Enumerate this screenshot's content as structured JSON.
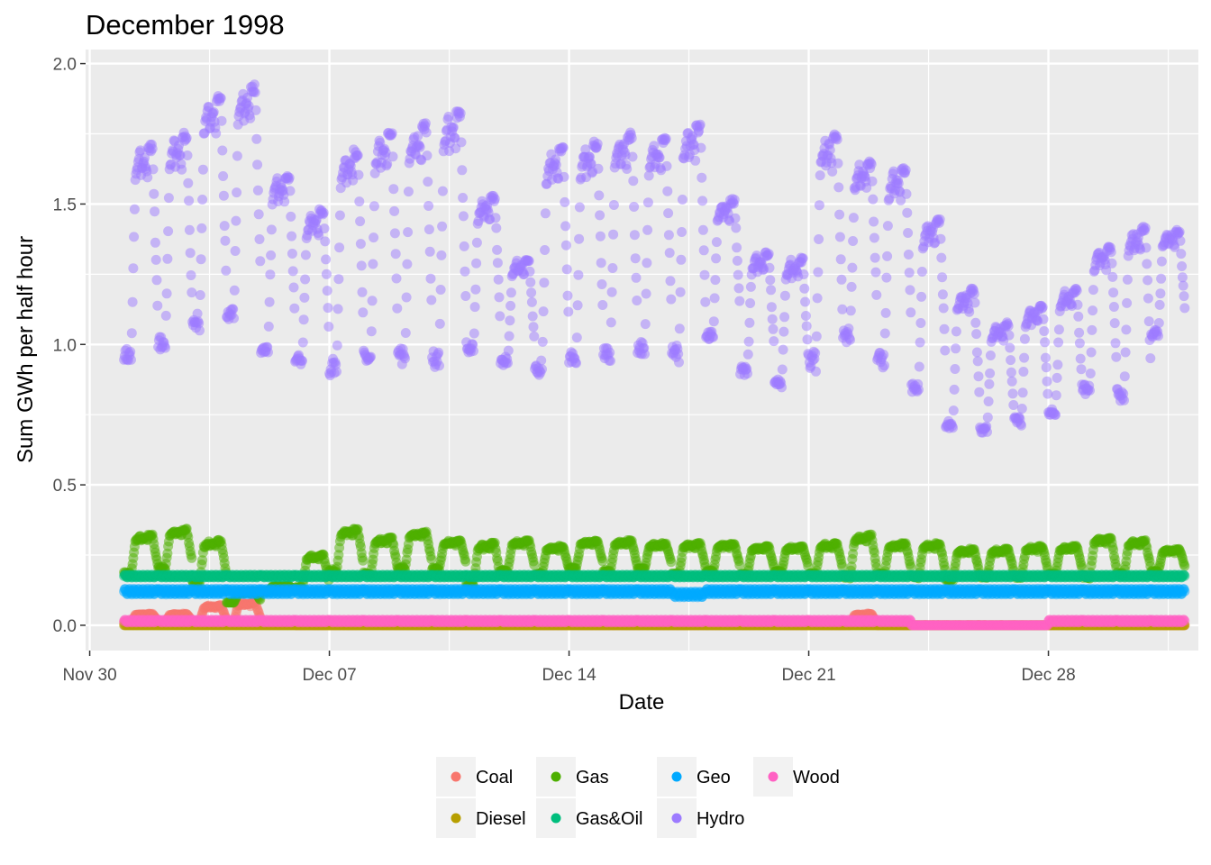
{
  "chart_data": {
    "type": "scatter",
    "title": "December 1998",
    "xlabel": "Date",
    "ylabel": "Sum GWh per half hour",
    "x_unit": "date",
    "x_ticks": [
      {
        "label": "Nov 30",
        "value": "1998-11-30"
      },
      {
        "label": "Dec 07",
        "value": "1998-12-07"
      },
      {
        "label": "Dec 14",
        "value": "1998-12-14"
      },
      {
        "label": "Dec 21",
        "value": "1998-12-21"
      },
      {
        "label": "Dec 28",
        "value": "1998-12-28"
      }
    ],
    "xlim": [
      "1998-11-30",
      "1999-01-01"
    ],
    "y_ticks": [
      0.0,
      0.5,
      1.0,
      1.5,
      2.0
    ],
    "y_tick_labels": [
      "0.0",
      "0.5",
      "1.0",
      "1.5",
      "2.0"
    ],
    "ylim": [
      -0.09,
      2.05
    ],
    "grid": true,
    "legend_position": "bottom",
    "series": [
      {
        "name": "Coal",
        "color": "#F8766D",
        "daily": {
          "days": [
            1,
            2,
            3,
            4,
            5,
            6,
            7,
            8,
            9,
            10,
            11,
            12,
            13,
            14,
            15,
            16,
            17,
            18,
            19,
            20,
            21,
            22,
            23,
            24,
            25,
            26,
            27,
            28,
            29,
            30,
            31
          ],
          "base": [
            0.01,
            0.01,
            0.01,
            0.01,
            0.01,
            0.0,
            0.0,
            0.0,
            0.0,
            0.0,
            0.0,
            0.0,
            0.0,
            0.0,
            0.0,
            0.0,
            0.0,
            0.0,
            0.0,
            0.0,
            0.0,
            0.0,
            0.0,
            0.0,
            0.0,
            0.0,
            0.0,
            0.0,
            0.0,
            0.0,
            0.0
          ],
          "peak": [
            0.04,
            0.04,
            0.07,
            0.08,
            0.01,
            0.0,
            0.0,
            0.0,
            0.0,
            0.0,
            0.0,
            0.0,
            0.0,
            0.0,
            0.0,
            0.0,
            0.0,
            0.0,
            0.0,
            0.0,
            0.0,
            0.04,
            0.0,
            0.0,
            0.0,
            0.0,
            0.0,
            0.0,
            0.0,
            0.0,
            0.0
          ]
        }
      },
      {
        "name": "Diesel",
        "color": "#B79F00",
        "daily": {
          "days": [
            1,
            2,
            3,
            4,
            5,
            6,
            7,
            8,
            9,
            10,
            11,
            12,
            13,
            14,
            15,
            16,
            17,
            18,
            19,
            20,
            21,
            22,
            23,
            24,
            25,
            26,
            27,
            28,
            29,
            30,
            31
          ],
          "base": [
            0.0,
            0.0,
            0.0,
            0.0,
            0.0,
            0.0,
            0.0,
            0.0,
            0.0,
            0.0,
            0.0,
            0.0,
            0.0,
            0.0,
            0.0,
            0.0,
            0.0,
            0.0,
            0.0,
            0.0,
            0.0,
            0.0,
            0.0,
            0.0,
            0.0,
            0.0,
            0.0,
            0.0,
            0.0,
            0.0,
            0.0
          ],
          "peak": [
            0.0,
            0.0,
            0.0,
            0.0,
            0.0,
            0.0,
            0.0,
            0.0,
            0.0,
            0.0,
            0.0,
            0.0,
            0.0,
            0.0,
            0.0,
            0.0,
            0.0,
            0.0,
            0.0,
            0.0,
            0.0,
            0.0,
            0.0,
            0.0,
            0.0,
            0.0,
            0.0,
            0.0,
            0.0,
            0.0,
            0.0
          ]
        }
      },
      {
        "name": "Gas",
        "color": "#4DAF00",
        "daily": {
          "days": [
            1,
            2,
            3,
            4,
            5,
            6,
            7,
            8,
            9,
            10,
            11,
            12,
            13,
            14,
            15,
            16,
            17,
            18,
            19,
            20,
            21,
            22,
            23,
            24,
            25,
            26,
            27,
            28,
            29,
            30,
            31
          ],
          "base": [
            0.18,
            0.2,
            0.15,
            0.08,
            0.12,
            0.13,
            0.19,
            0.18,
            0.2,
            0.2,
            0.14,
            0.19,
            0.18,
            0.2,
            0.19,
            0.2,
            0.18,
            0.19,
            0.18,
            0.19,
            0.18,
            0.17,
            0.18,
            0.17,
            0.16,
            0.17,
            0.17,
            0.18,
            0.17,
            0.18,
            0.19
          ],
          "peak": [
            0.32,
            0.34,
            0.3,
            0.12,
            0.14,
            0.25,
            0.34,
            0.31,
            0.33,
            0.3,
            0.29,
            0.3,
            0.28,
            0.3,
            0.3,
            0.29,
            0.29,
            0.29,
            0.28,
            0.28,
            0.29,
            0.32,
            0.29,
            0.29,
            0.27,
            0.27,
            0.28,
            0.28,
            0.31,
            0.3,
            0.27
          ]
        }
      },
      {
        "name": "Gas&Oil",
        "color": "#00BE7D",
        "daily": {
          "days": [
            1,
            2,
            3,
            4,
            5,
            6,
            7,
            8,
            9,
            10,
            11,
            12,
            13,
            14,
            15,
            16,
            17,
            18,
            19,
            20,
            21,
            22,
            23,
            24,
            25,
            26,
            27,
            28,
            29,
            30,
            31
          ],
          "base": [
            0.17,
            0.17,
            0.17,
            0.17,
            0.17,
            0.17,
            0.17,
            0.17,
            0.17,
            0.17,
            0.17,
            0.17,
            0.17,
            0.17,
            0.17,
            0.17,
            0.17,
            0.17,
            0.17,
            0.17,
            0.17,
            0.17,
            0.17,
            0.17,
            0.17,
            0.17,
            0.17,
            0.17,
            0.17,
            0.17,
            0.17
          ],
          "peak": [
            0.18,
            0.18,
            0.18,
            0.18,
            0.18,
            0.18,
            0.18,
            0.18,
            0.18,
            0.18,
            0.18,
            0.18,
            0.18,
            0.18,
            0.18,
            0.18,
            0.18,
            0.18,
            0.18,
            0.18,
            0.18,
            0.18,
            0.18,
            0.18,
            0.18,
            0.18,
            0.18,
            0.18,
            0.18,
            0.18,
            0.18
          ]
        }
      },
      {
        "name": "Geo",
        "color": "#00A9FF",
        "daily": {
          "days": [
            1,
            2,
            3,
            4,
            5,
            6,
            7,
            8,
            9,
            10,
            11,
            12,
            13,
            14,
            15,
            16,
            17,
            18,
            19,
            20,
            21,
            22,
            23,
            24,
            25,
            26,
            27,
            28,
            29,
            30,
            31
          ],
          "base": [
            0.11,
            0.11,
            0.11,
            0.11,
            0.11,
            0.11,
            0.11,
            0.11,
            0.11,
            0.11,
            0.11,
            0.11,
            0.11,
            0.11,
            0.11,
            0.11,
            0.1,
            0.11,
            0.11,
            0.11,
            0.11,
            0.11,
            0.11,
            0.11,
            0.11,
            0.11,
            0.11,
            0.11,
            0.11,
            0.11,
            0.11
          ],
          "peak": [
            0.13,
            0.13,
            0.13,
            0.13,
            0.13,
            0.13,
            0.13,
            0.13,
            0.13,
            0.13,
            0.13,
            0.13,
            0.13,
            0.13,
            0.13,
            0.13,
            0.12,
            0.13,
            0.13,
            0.13,
            0.13,
            0.13,
            0.13,
            0.13,
            0.13,
            0.13,
            0.13,
            0.13,
            0.13,
            0.13,
            0.13
          ]
        }
      },
      {
        "name": "Hydro",
        "color": "#9D7BFF",
        "daily": {
          "days": [
            1,
            2,
            3,
            4,
            5,
            6,
            7,
            8,
            9,
            10,
            11,
            12,
            13,
            14,
            15,
            16,
            17,
            18,
            19,
            20,
            21,
            22,
            23,
            24,
            25,
            26,
            27,
            28,
            29,
            30,
            31
          ],
          "base": [
            0.94,
            0.98,
            1.06,
            1.09,
            0.97,
            0.93,
            0.9,
            0.94,
            0.94,
            0.93,
            0.97,
            0.93,
            0.9,
            0.93,
            0.95,
            0.97,
            0.95,
            1.02,
            0.9,
            0.85,
            0.92,
            1.02,
            0.93,
            0.83,
            0.7,
            0.69,
            0.72,
            0.75,
            0.83,
            0.81,
            1.03
          ],
          "peak": [
            1.7,
            1.74,
            1.87,
            1.91,
            1.6,
            1.47,
            1.68,
            1.74,
            1.77,
            1.82,
            1.52,
            1.3,
            1.69,
            1.71,
            1.74,
            1.72,
            1.77,
            1.51,
            1.32,
            1.3,
            1.74,
            1.64,
            1.62,
            1.44,
            1.19,
            1.07,
            1.13,
            1.19,
            1.34,
            1.41,
            1.4
          ]
        }
      },
      {
        "name": "Wood",
        "color": "#FF61C3",
        "daily": {
          "days": [
            1,
            2,
            3,
            4,
            5,
            6,
            7,
            8,
            9,
            10,
            11,
            12,
            13,
            14,
            15,
            16,
            17,
            18,
            19,
            20,
            21,
            22,
            23,
            24,
            25,
            26,
            27,
            28,
            29,
            30,
            31
          ],
          "base": [
            0.01,
            0.01,
            0.01,
            0.01,
            0.01,
            0.01,
            0.01,
            0.01,
            0.01,
            0.01,
            0.01,
            0.01,
            0.01,
            0.01,
            0.01,
            0.01,
            0.01,
            0.01,
            0.01,
            0.01,
            0.01,
            0.01,
            0.01,
            0.0,
            0.0,
            0.0,
            0.0,
            0.01,
            0.01,
            0.01,
            0.01
          ],
          "peak": [
            0.02,
            0.02,
            0.02,
            0.02,
            0.02,
            0.02,
            0.02,
            0.02,
            0.02,
            0.02,
            0.02,
            0.02,
            0.02,
            0.02,
            0.02,
            0.02,
            0.02,
            0.02,
            0.02,
            0.02,
            0.02,
            0.02,
            0.02,
            0.0,
            0.0,
            0.0,
            0.0,
            0.02,
            0.02,
            0.02,
            0.02
          ]
        }
      }
    ],
    "legend": {
      "columns": [
        [
          "Coal",
          "Diesel"
        ],
        [
          "Gas",
          "Gas&Oil"
        ],
        [
          "Geo",
          "Hydro"
        ],
        [
          "Wood"
        ]
      ]
    }
  }
}
